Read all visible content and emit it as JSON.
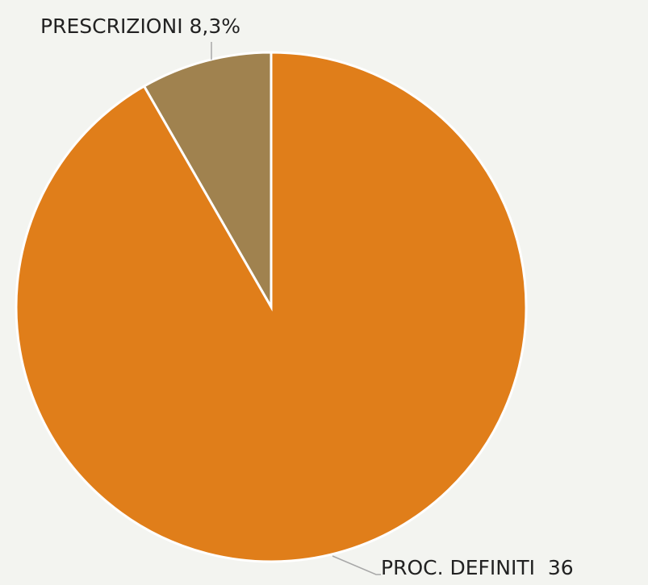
{
  "chart_data": {
    "type": "pie",
    "categories": [
      "PRESCRIZIONI",
      "PROC. DEFINITI"
    ],
    "values": [
      8.3,
      91.7
    ],
    "labels": [
      "PRESCRIZIONI 8,3%",
      "PROC. DEFINITI  36"
    ],
    "colors": [
      "#a0824f",
      "#e07e1a"
    ]
  }
}
